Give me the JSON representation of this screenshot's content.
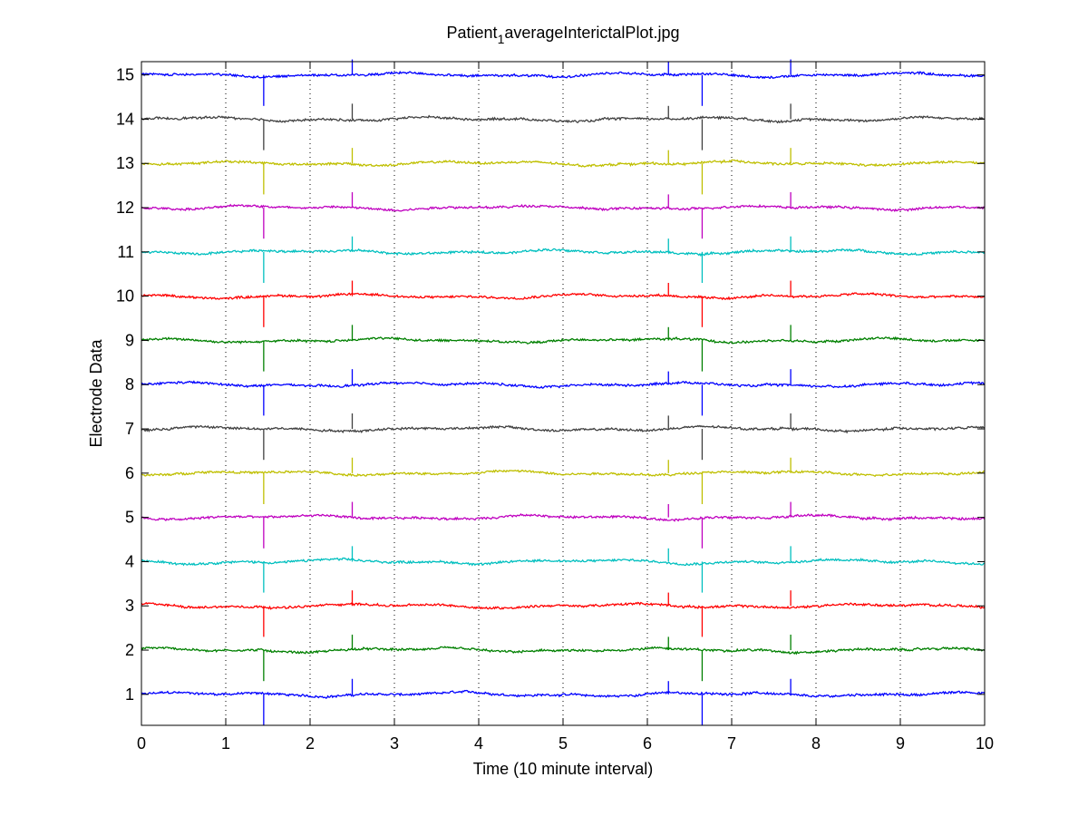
{
  "chart_data": {
    "type": "line",
    "title": {
      "prefix": "Patient",
      "subscript": "1",
      "suffix": "averageInterictalPlot.jpg"
    },
    "xlabel": "Time (10 minute interval)",
    "ylabel": "Electrode Data",
    "xlim": [
      0,
      10
    ],
    "ylim": [
      0.3,
      15.3
    ],
    "x_ticks": [
      0,
      1,
      2,
      3,
      4,
      5,
      6,
      7,
      8,
      9,
      10
    ],
    "y_ticks": [
      1,
      2,
      3,
      4,
      5,
      6,
      7,
      8,
      9,
      10,
      11,
      12,
      13,
      14,
      15
    ],
    "grid": {
      "x": "dotted",
      "y": "none"
    },
    "series": [
      {
        "baseline": 1,
        "color": "#0000ff"
      },
      {
        "baseline": 2,
        "color": "#008000"
      },
      {
        "baseline": 3,
        "color": "#ff0000"
      },
      {
        "baseline": 4,
        "color": "#00bfbf"
      },
      {
        "baseline": 5,
        "color": "#bf00bf"
      },
      {
        "baseline": 6,
        "color": "#bfbf00"
      },
      {
        "baseline": 7,
        "color": "#404040"
      },
      {
        "baseline": 8,
        "color": "#0000ff"
      },
      {
        "baseline": 9,
        "color": "#008000"
      },
      {
        "baseline": 10,
        "color": "#ff0000"
      },
      {
        "baseline": 11,
        "color": "#00bfbf"
      },
      {
        "baseline": 12,
        "color": "#bf00bf"
      },
      {
        "baseline": 13,
        "color": "#bfbf00"
      },
      {
        "baseline": 14,
        "color": "#404040"
      },
      {
        "baseline": 15,
        "color": "#0000ff"
      }
    ],
    "spikes": [
      {
        "x": 1.45,
        "amplitude": -0.7
      },
      {
        "x": 2.5,
        "amplitude": 0.35
      },
      {
        "x": 6.25,
        "amplitude": 0.3
      },
      {
        "x": 6.65,
        "amplitude": -0.7
      },
      {
        "x": 7.7,
        "amplitude": 0.35
      }
    ]
  }
}
